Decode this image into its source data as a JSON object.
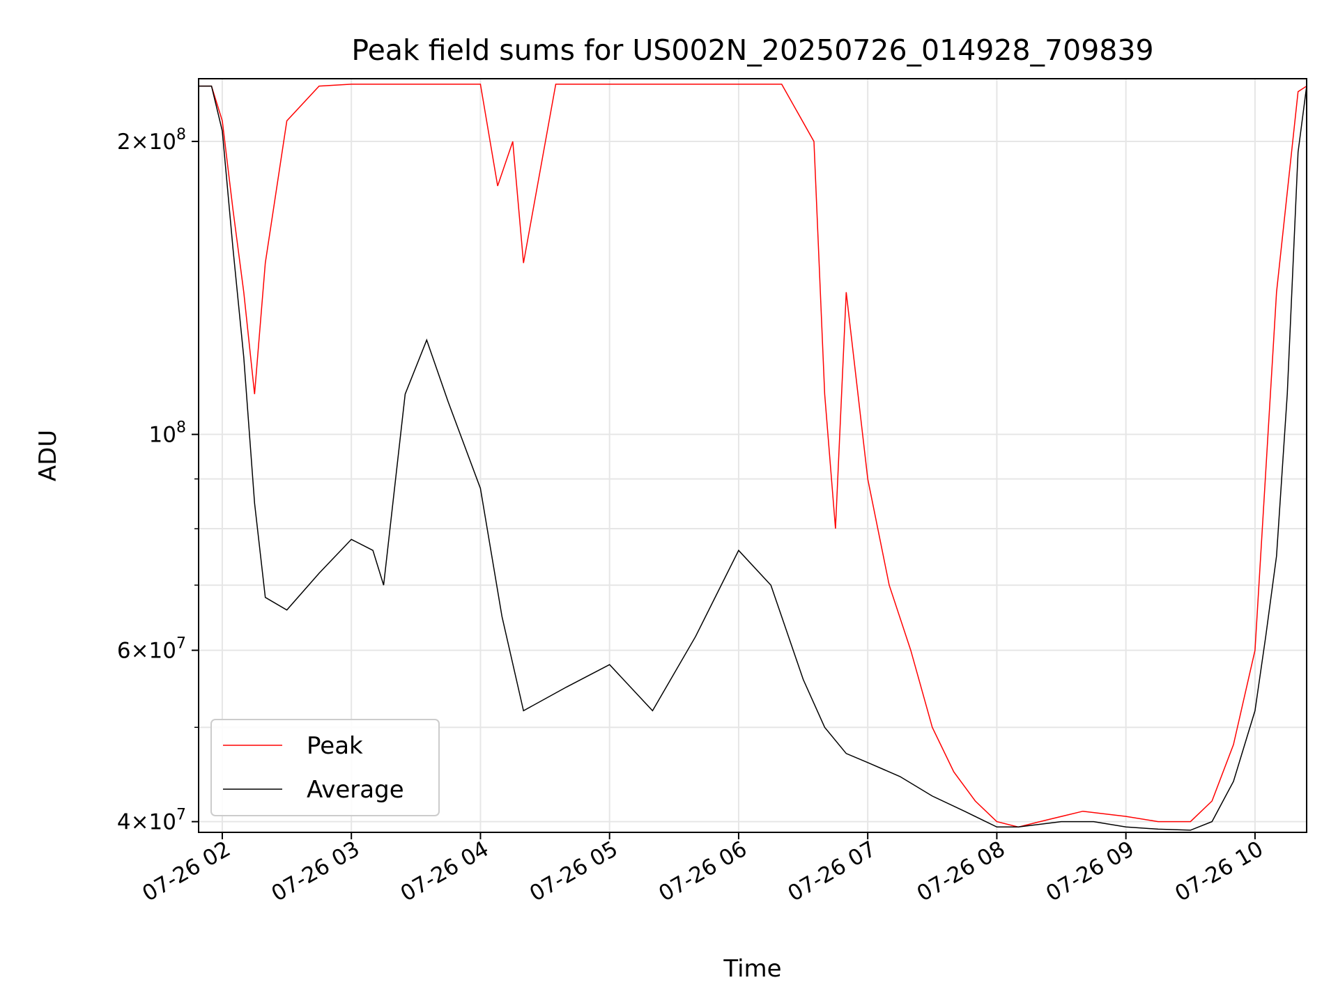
{
  "chart_data": {
    "type": "line",
    "title": "Peak field sums for US002N_20250726_014928_709839",
    "xlabel": "Time",
    "ylabel": "ADU",
    "y_scale": "log",
    "ylim": [
      39000000,
      232000000
    ],
    "xlim": [
      "2025-07-26 01:49",
      "2025-07-26 10:24"
    ],
    "grid": true,
    "legend_position": "lower-left",
    "x_ticks": [
      {
        "x": "2025-07-26 02:00",
        "label": "07-26 02"
      },
      {
        "x": "2025-07-26 03:00",
        "label": "07-26 03"
      },
      {
        "x": "2025-07-26 04:00",
        "label": "07-26 04"
      },
      {
        "x": "2025-07-26 05:00",
        "label": "07-26 05"
      },
      {
        "x": "2025-07-26 06:00",
        "label": "07-26 06"
      },
      {
        "x": "2025-07-26 07:00",
        "label": "07-26 07"
      },
      {
        "x": "2025-07-26 08:00",
        "label": "07-26 08"
      },
      {
        "x": "2025-07-26 09:00",
        "label": "07-26 09"
      },
      {
        "x": "2025-07-26 10:00",
        "label": "07-26 10"
      }
    ],
    "y_ticks": [
      {
        "value": 40000000,
        "label_base": "4×10",
        "label_exp": "7"
      },
      {
        "value": 60000000,
        "label_base": "6×10",
        "label_exp": "7"
      },
      {
        "value": 100000000,
        "label_base": "10",
        "label_exp": "8"
      },
      {
        "value": 200000000,
        "label_base": "2×10",
        "label_exp": "8"
      }
    ],
    "y_minor_ticks": [
      50000000,
      70000000,
      80000000,
      90000000
    ],
    "series": [
      {
        "name": "Peak",
        "color": "#ff0000",
        "x": [
          "2025-07-26 01:49",
          "2025-07-26 01:55",
          "2025-07-26 02:00",
          "2025-07-26 02:05",
          "2025-07-26 02:10",
          "2025-07-26 02:15",
          "2025-07-26 02:20",
          "2025-07-26 02:30",
          "2025-07-26 02:45",
          "2025-07-26 03:00",
          "2025-07-26 03:30",
          "2025-07-26 04:00",
          "2025-07-26 04:08",
          "2025-07-26 04:15",
          "2025-07-26 04:20",
          "2025-07-26 04:35",
          "2025-07-26 05:00",
          "2025-07-26 05:30",
          "2025-07-26 06:00",
          "2025-07-26 06:20",
          "2025-07-26 06:35",
          "2025-07-26 06:40",
          "2025-07-26 06:45",
          "2025-07-26 06:50",
          "2025-07-26 07:00",
          "2025-07-26 07:10",
          "2025-07-26 07:20",
          "2025-07-26 07:30",
          "2025-07-26 07:40",
          "2025-07-26 07:50",
          "2025-07-26 08:00",
          "2025-07-26 08:10",
          "2025-07-26 08:20",
          "2025-07-26 08:40",
          "2025-07-26 09:00",
          "2025-07-26 09:15",
          "2025-07-26 09:30",
          "2025-07-26 09:40",
          "2025-07-26 09:50",
          "2025-07-26 10:00",
          "2025-07-26 10:10",
          "2025-07-26 10:20",
          "2025-07-26 10:24"
        ],
        "y": [
          228000000,
          228000000,
          210000000,
          170000000,
          140000000,
          110000000,
          150000000,
          210000000,
          228000000,
          229000000,
          229000000,
          229000000,
          180000000,
          200000000,
          150000000,
          229000000,
          229000000,
          229000000,
          229000000,
          229000000,
          200000000,
          110000000,
          80000000,
          140000000,
          90000000,
          70000000,
          60000000,
          50000000,
          45000000,
          42000000,
          40000000,
          39500000,
          40000000,
          41000000,
          40500000,
          40000000,
          40000000,
          42000000,
          48000000,
          60000000,
          140000000,
          225000000,
          228000000
        ]
      },
      {
        "name": "Average",
        "color": "#000000",
        "x": [
          "2025-07-26 01:49",
          "2025-07-26 01:55",
          "2025-07-26 02:00",
          "2025-07-26 02:05",
          "2025-07-26 02:10",
          "2025-07-26 02:15",
          "2025-07-26 02:20",
          "2025-07-26 02:30",
          "2025-07-26 02:45",
          "2025-07-26 03:00",
          "2025-07-26 03:10",
          "2025-07-26 03:15",
          "2025-07-26 03:25",
          "2025-07-26 03:35",
          "2025-07-26 03:45",
          "2025-07-26 04:00",
          "2025-07-26 04:10",
          "2025-07-26 04:20",
          "2025-07-26 04:40",
          "2025-07-26 05:00",
          "2025-07-26 05:20",
          "2025-07-26 05:40",
          "2025-07-26 06:00",
          "2025-07-26 06:15",
          "2025-07-26 06:30",
          "2025-07-26 06:40",
          "2025-07-26 06:50",
          "2025-07-26 07:00",
          "2025-07-26 07:15",
          "2025-07-26 07:30",
          "2025-07-26 07:45",
          "2025-07-26 08:00",
          "2025-07-26 08:10",
          "2025-07-26 08:30",
          "2025-07-26 08:45",
          "2025-07-26 09:00",
          "2025-07-26 09:15",
          "2025-07-26 09:30",
          "2025-07-26 09:40",
          "2025-07-26 09:50",
          "2025-07-26 10:00",
          "2025-07-26 10:05",
          "2025-07-26 10:10",
          "2025-07-26 10:15",
          "2025-07-26 10:20",
          "2025-07-26 10:24"
        ],
        "y": [
          228000000,
          228000000,
          205000000,
          155000000,
          120000000,
          85000000,
          68000000,
          66000000,
          72000000,
          78000000,
          76000000,
          70000000,
          110000000,
          125000000,
          108000000,
          88000000,
          65000000,
          52000000,
          55000000,
          58000000,
          52000000,
          62000000,
          76000000,
          70000000,
          56000000,
          50000000,
          47000000,
          46000000,
          44500000,
          42500000,
          41000000,
          39500000,
          39500000,
          40000000,
          40000000,
          39500000,
          39300000,
          39200000,
          40000000,
          44000000,
          52000000,
          62000000,
          75000000,
          110000000,
          195000000,
          228000000
        ]
      }
    ]
  }
}
